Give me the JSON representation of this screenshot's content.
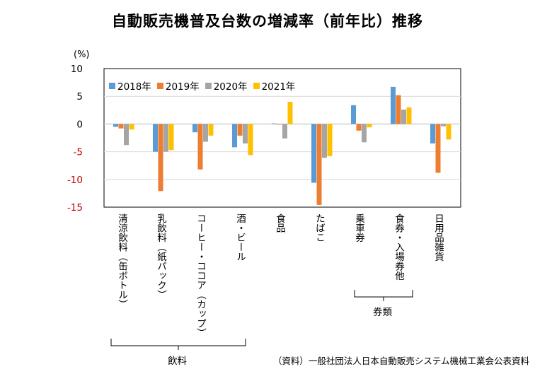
{
  "title": "自動販売機普及台数の増減率（前年比）推移",
  "unit_label": "(%)",
  "source": "（資料）一般社団法人日本自動販売システム機械工業会公表資料",
  "chart_data": {
    "type": "bar",
    "title": "自動販売機普及台数の増減率（前年比）推移",
    "ylabel": "(%)",
    "ylim": [
      -15,
      10
    ],
    "yticks": [
      10,
      5,
      0,
      -5,
      -10,
      -15
    ],
    "categories": [
      "清涼飲料（缶ボトル）",
      "乳飲料（紙パック）",
      "コーヒー・ココア（カップ）",
      "酒・ビール",
      "食品",
      "たばこ",
      "乗車券",
      "食券・入場券他",
      "日用品雑貨"
    ],
    "series": [
      {
        "name": "2018年",
        "color": "#5b9bd5",
        "values": [
          -0.5,
          -5.0,
          -1.5,
          -4.2,
          0.1,
          -10.6,
          3.4,
          6.7,
          -3.5
        ]
      },
      {
        "name": "2019年",
        "color": "#ed7d31",
        "values": [
          -0.8,
          -12.1,
          -8.2,
          -2.1,
          0.0,
          -14.6,
          -1.2,
          5.2,
          -8.8
        ]
      },
      {
        "name": "2020年",
        "color": "#a5a5a5",
        "values": [
          -3.8,
          -5.0,
          -3.2,
          -3.5,
          -2.6,
          -6.1,
          -3.3,
          2.6,
          -0.4
        ]
      },
      {
        "name": "2021年",
        "color": "#ffc000",
        "values": [
          -1.0,
          -4.7,
          -2.1,
          -5.6,
          4.0,
          -5.8,
          -0.6,
          3.0,
          -2.8
        ]
      }
    ],
    "legend": "top-left",
    "grid": true
  },
  "category_labels": [
    "清涼飲料（缶ボトル）",
    "乳飲料（紙パック）",
    "コーヒー・ココア（カップ）",
    "酒・ビール",
    "食品",
    "たばこ",
    "乗車券",
    "食券・入場券他",
    "日用品雑貨"
  ],
  "groups": [
    {
      "label": "券類"
    },
    {
      "label": "飲料"
    }
  ]
}
